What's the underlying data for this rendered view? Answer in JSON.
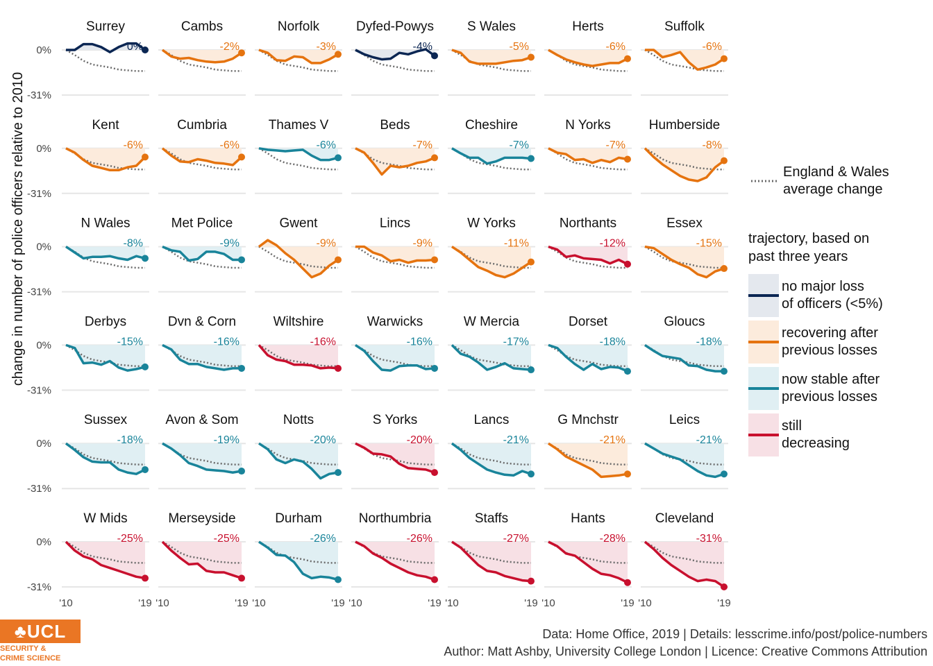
{
  "chart_data": {
    "type": "line",
    "ylabel": "change in number of police officers relative to 2010",
    "y_ticks": [
      "0%",
      "-31%"
    ],
    "x_tick_start": "'10",
    "x_tick_end": "'19",
    "x_tick_end_last": "'19",
    "x": [
      2010,
      2011,
      2012,
      2013,
      2014,
      2015,
      2016,
      2017,
      2018,
      2019
    ],
    "ylim": [
      -0.33,
      0.04
    ],
    "average": {
      "name": "England & Wales average change",
      "values": [
        0,
        -0.035,
        -0.075,
        -0.1,
        -0.11,
        -0.12,
        -0.135,
        -0.14,
        -0.145,
        -0.145
      ]
    },
    "categories": {
      "stable": {
        "color": "#0b2653",
        "fill": "#e4e8ee",
        "label": "no major loss of officers (<5%)"
      },
      "recovering": {
        "color": "#e5730f",
        "fill": "#fcebdc",
        "label": "recovering after previous losses"
      },
      "nowstable": {
        "color": "#19849a",
        "fill": "#e0eff3",
        "label": "now stable after previous losses"
      },
      "decreasing": {
        "color": "#c8102e",
        "fill": "#f7e0e5",
        "label": "still decreasing"
      }
    },
    "panels": [
      {
        "name": "Surrey",
        "label": "0%",
        "cat": "stable",
        "values": [
          0,
          0,
          0.04,
          0.04,
          0.02,
          -0.015,
          0.02,
          0.045,
          0.045,
          0
        ]
      },
      {
        "name": "Cambs",
        "label": "-2%",
        "cat": "recovering",
        "values": [
          0,
          -0.045,
          -0.06,
          -0.055,
          -0.07,
          -0.08,
          -0.085,
          -0.08,
          -0.06,
          -0.02
        ]
      },
      {
        "name": "Norfolk",
        "label": "-3%",
        "cat": "recovering",
        "values": [
          0,
          -0.02,
          -0.07,
          -0.075,
          -0.045,
          -0.05,
          -0.09,
          -0.09,
          -0.065,
          -0.03
        ]
      },
      {
        "name": "Dyfed-Powys",
        "label": "-4%",
        "cat": "stable",
        "values": [
          0,
          -0.03,
          -0.05,
          -0.065,
          -0.06,
          -0.02,
          -0.03,
          -0.01,
          0.005,
          -0.04
        ]
      },
      {
        "name": "S Wales",
        "label": "-5%",
        "cat": "recovering",
        "values": [
          0,
          -0.02,
          -0.08,
          -0.095,
          -0.095,
          -0.095,
          -0.085,
          -0.075,
          -0.07,
          -0.05
        ]
      },
      {
        "name": "Herts",
        "label": "-6%",
        "cat": "recovering",
        "values": [
          0,
          -0.035,
          -0.065,
          -0.085,
          -0.1,
          -0.11,
          -0.1,
          -0.09,
          -0.09,
          -0.06
        ]
      },
      {
        "name": "Suffolk",
        "label": "-6%",
        "cat": "recovering",
        "values": [
          0,
          0,
          -0.05,
          -0.035,
          -0.015,
          -0.085,
          -0.135,
          -0.12,
          -0.1,
          -0.06
        ]
      },
      {
        "name": "Kent",
        "label": "-6%",
        "cat": "recovering",
        "values": [
          0,
          -0.03,
          -0.08,
          -0.12,
          -0.135,
          -0.15,
          -0.15,
          -0.13,
          -0.12,
          -0.06
        ]
      },
      {
        "name": "Cumbria",
        "label": "-6%",
        "cat": "recovering",
        "values": [
          0,
          -0.05,
          -0.09,
          -0.095,
          -0.075,
          -0.085,
          -0.1,
          -0.105,
          -0.115,
          -0.06
        ]
      },
      {
        "name": "Thames V",
        "label": "-6%",
        "cat": "nowstable",
        "values": [
          0,
          -0.01,
          -0.015,
          -0.02,
          -0.015,
          -0.01,
          -0.05,
          -0.08,
          -0.08,
          -0.065
        ]
      },
      {
        "name": "Beds",
        "label": "-7%",
        "cat": "recovering",
        "values": [
          0,
          -0.03,
          -0.1,
          -0.18,
          -0.12,
          -0.13,
          -0.12,
          -0.1,
          -0.09,
          -0.065
        ]
      },
      {
        "name": "Cheshire",
        "label": "-7%",
        "cat": "nowstable",
        "values": [
          0,
          -0.035,
          -0.065,
          -0.065,
          -0.105,
          -0.09,
          -0.065,
          -0.065,
          -0.065,
          -0.07
        ]
      },
      {
        "name": "N Yorks",
        "label": "-7%",
        "cat": "recovering",
        "values": [
          0,
          -0.03,
          -0.04,
          -0.08,
          -0.075,
          -0.1,
          -0.08,
          -0.095,
          -0.065,
          -0.075
        ]
      },
      {
        "name": "Humberside",
        "label": "-8%",
        "cat": "recovering",
        "values": [
          0,
          -0.06,
          -0.11,
          -0.15,
          -0.19,
          -0.215,
          -0.225,
          -0.2,
          -0.13,
          -0.085
        ]
      },
      {
        "name": "N Wales",
        "label": "-8%",
        "cat": "nowstable",
        "values": [
          0,
          -0.04,
          -0.08,
          -0.07,
          -0.07,
          -0.065,
          -0.08,
          -0.09,
          -0.065,
          -0.08
        ]
      },
      {
        "name": "Met Police",
        "label": "-9%",
        "cat": "nowstable",
        "values": [
          0,
          -0.025,
          -0.035,
          -0.095,
          -0.085,
          -0.035,
          -0.035,
          -0.05,
          -0.09,
          -0.09
        ]
      },
      {
        "name": "Gwent",
        "label": "-9%",
        "cat": "recovering",
        "values": [
          0,
          0.045,
          0.01,
          -0.045,
          -0.09,
          -0.15,
          -0.21,
          -0.185,
          -0.13,
          -0.09
        ]
      },
      {
        "name": "Lincs",
        "label": "-9%",
        "cat": "recovering",
        "values": [
          0,
          0,
          -0.04,
          -0.06,
          -0.1,
          -0.09,
          -0.11,
          -0.095,
          -0.095,
          -0.09
        ]
      },
      {
        "name": "W Yorks",
        "label": "-11%",
        "cat": "recovering",
        "values": [
          0,
          -0.04,
          -0.09,
          -0.14,
          -0.165,
          -0.195,
          -0.21,
          -0.185,
          -0.145,
          -0.105
        ]
      },
      {
        "name": "Northants",
        "label": "-12%",
        "cat": "decreasing",
        "values": [
          0,
          -0.02,
          -0.07,
          -0.06,
          -0.08,
          -0.085,
          -0.09,
          -0.115,
          -0.09,
          -0.12
        ]
      },
      {
        "name": "Essex",
        "label": "-15%",
        "cat": "recovering",
        "values": [
          0,
          -0.01,
          -0.05,
          -0.09,
          -0.12,
          -0.145,
          -0.19,
          -0.21,
          -0.17,
          -0.15
        ]
      },
      {
        "name": "Derbys",
        "label": "-15%",
        "cat": "nowstable",
        "values": [
          0,
          -0.02,
          -0.125,
          -0.12,
          -0.135,
          -0.11,
          -0.155,
          -0.175,
          -0.165,
          -0.15
        ]
      },
      {
        "name": "Dvn & Corn",
        "label": "-16%",
        "cat": "nowstable",
        "values": [
          0,
          -0.03,
          -0.1,
          -0.13,
          -0.13,
          -0.15,
          -0.16,
          -0.17,
          -0.16,
          -0.16
        ]
      },
      {
        "name": "Wiltshire",
        "label": "-16%",
        "cat": "decreasing",
        "values": [
          0,
          -0.07,
          -0.1,
          -0.11,
          -0.135,
          -0.135,
          -0.14,
          -0.16,
          -0.155,
          -0.16
        ]
      },
      {
        "name": "Warwicks",
        "label": "-16%",
        "cat": "nowstable",
        "values": [
          0,
          -0.04,
          -0.11,
          -0.17,
          -0.175,
          -0.145,
          -0.14,
          -0.14,
          -0.165,
          -0.16
        ]
      },
      {
        "name": "W Mercia",
        "label": "-17%",
        "cat": "nowstable",
        "values": [
          0,
          -0.06,
          -0.08,
          -0.12,
          -0.17,
          -0.15,
          -0.125,
          -0.16,
          -0.165,
          -0.17
        ]
      },
      {
        "name": "Dorset",
        "label": "-18%",
        "cat": "nowstable",
        "values": [
          0,
          -0.02,
          -0.08,
          -0.13,
          -0.17,
          -0.13,
          -0.165,
          -0.15,
          -0.155,
          -0.18
        ]
      },
      {
        "name": "Gloucs",
        "label": "-18%",
        "cat": "nowstable",
        "values": [
          0,
          -0.04,
          -0.075,
          -0.085,
          -0.095,
          -0.14,
          -0.145,
          -0.17,
          -0.18,
          -0.18
        ]
      },
      {
        "name": "Sussex",
        "label": "-18%",
        "cat": "nowstable",
        "values": [
          0,
          -0.045,
          -0.095,
          -0.125,
          -0.13,
          -0.13,
          -0.18,
          -0.2,
          -0.21,
          -0.18
        ]
      },
      {
        "name": "Avon & Som",
        "label": "-19%",
        "cat": "nowstable",
        "values": [
          0,
          -0.035,
          -0.08,
          -0.135,
          -0.155,
          -0.18,
          -0.185,
          -0.19,
          -0.2,
          -0.19
        ]
      },
      {
        "name": "Notts",
        "label": "-20%",
        "cat": "nowstable",
        "values": [
          0,
          -0.04,
          -0.11,
          -0.135,
          -0.11,
          -0.125,
          -0.175,
          -0.24,
          -0.21,
          -0.2
        ]
      },
      {
        "name": "S Yorks",
        "label": "-20%",
        "cat": "decreasing",
        "values": [
          0,
          -0.03,
          -0.07,
          -0.075,
          -0.09,
          -0.14,
          -0.17,
          -0.175,
          -0.18,
          -0.2
        ]
      },
      {
        "name": "Lancs",
        "label": "-21%",
        "cat": "nowstable",
        "values": [
          0,
          -0.045,
          -0.1,
          -0.14,
          -0.18,
          -0.2,
          -0.215,
          -0.22,
          -0.19,
          -0.21
        ]
      },
      {
        "name": "G Mnchstr",
        "label": "-21%",
        "cat": "recovering",
        "values": [
          0,
          -0.04,
          -0.09,
          -0.12,
          -0.15,
          -0.18,
          -0.23,
          -0.225,
          -0.22,
          -0.21
        ]
      },
      {
        "name": "Leics",
        "label": "-21%",
        "cat": "nowstable",
        "values": [
          0,
          -0.035,
          -0.07,
          -0.09,
          -0.11,
          -0.15,
          -0.19,
          -0.22,
          -0.23,
          -0.21
        ]
      },
      {
        "name": "W Mids",
        "label": "-25%",
        "cat": "decreasing",
        "values": [
          0,
          -0.06,
          -0.1,
          -0.12,
          -0.16,
          -0.18,
          -0.2,
          -0.22,
          -0.24,
          -0.25
        ]
      },
      {
        "name": "Merseyside",
        "label": "-25%",
        "cat": "decreasing",
        "values": [
          0,
          -0.06,
          -0.11,
          -0.155,
          -0.15,
          -0.2,
          -0.21,
          -0.21,
          -0.23,
          -0.25
        ]
      },
      {
        "name": "Durham",
        "label": "-26%",
        "cat": "nowstable",
        "values": [
          0,
          -0.04,
          -0.09,
          -0.095,
          -0.14,
          -0.22,
          -0.25,
          -0.24,
          -0.245,
          -0.26
        ]
      },
      {
        "name": "Northumbria",
        "label": "-26%",
        "cat": "decreasing",
        "values": [
          0,
          -0.03,
          -0.08,
          -0.11,
          -0.15,
          -0.18,
          -0.21,
          -0.23,
          -0.24,
          -0.26
        ]
      },
      {
        "name": "Staffs",
        "label": "-27%",
        "cat": "decreasing",
        "values": [
          0,
          -0.04,
          -0.1,
          -0.16,
          -0.2,
          -0.21,
          -0.235,
          -0.25,
          -0.265,
          -0.27
        ]
      },
      {
        "name": "Hants",
        "label": "-28%",
        "cat": "decreasing",
        "values": [
          0,
          -0.03,
          -0.08,
          -0.095,
          -0.14,
          -0.185,
          -0.22,
          -0.23,
          -0.25,
          -0.28
        ]
      },
      {
        "name": "Cleveland",
        "label": "-31%",
        "cat": "decreasing",
        "values": [
          0,
          -0.05,
          -0.11,
          -0.16,
          -0.2,
          -0.24,
          -0.27,
          -0.26,
          -0.27,
          -0.31
        ]
      }
    ]
  },
  "legend": {
    "avg_line1": "England & Wales",
    "avg_line2": "average change",
    "title_line1": "trajectory, based on",
    "title_line2": "past three years",
    "items": [
      {
        "line1": "no major loss",
        "line2": "of officers (<5%)"
      },
      {
        "line1": "recovering after",
        "line2": "previous losses"
      },
      {
        "line1": "now stable after",
        "line2": "previous losses"
      },
      {
        "line1": "still",
        "line2": "decreasing"
      }
    ]
  },
  "footer": {
    "line1": "Data: Home Office, 2019 |  Details: lesscrime.info/post/police-numbers",
    "line2": "Author: Matt Ashby, University College London |  Licence: Creative Commons Attribution"
  },
  "logo": {
    "mark": "♣UCL",
    "sub1": "SECURITY &",
    "sub2": "CRIME SCIENCE"
  }
}
